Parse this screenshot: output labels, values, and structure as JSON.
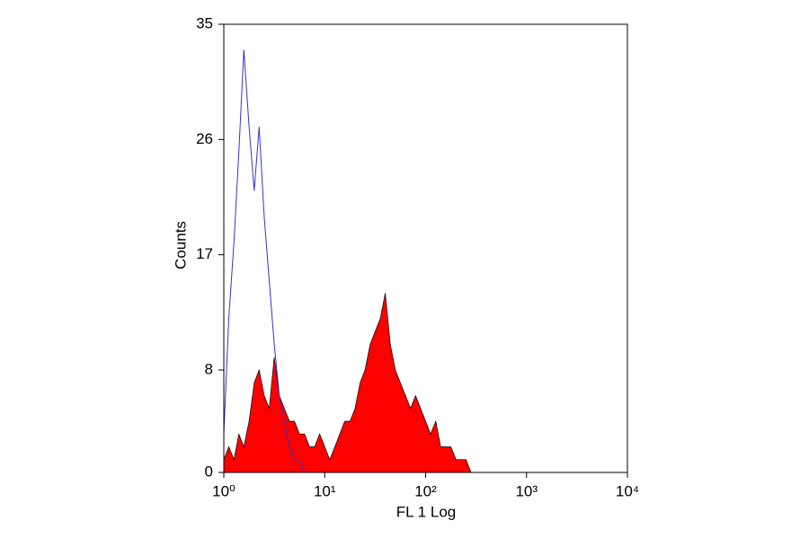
{
  "chart_data": {
    "type": "histogram",
    "xlabel": "FL 1 Log",
    "ylabel": "Counts",
    "log_x": true,
    "xlim": [
      1,
      10000
    ],
    "xticks": [
      {
        "value": 1,
        "label": "10⁰"
      },
      {
        "value": 10,
        "label": "10¹"
      },
      {
        "value": 100,
        "label": "10²"
      },
      {
        "value": 1000,
        "label": "10³"
      },
      {
        "value": 10000,
        "label": "10⁴"
      }
    ],
    "ylim": [
      0,
      35
    ],
    "yticks": [
      0,
      8,
      17,
      26,
      35
    ],
    "x": [
      1,
      1.12,
      1.26,
      1.41,
      1.58,
      1.78,
      2,
      2.24,
      2.51,
      2.82,
      3.16,
      3.55,
      3.98,
      4.47,
      5.01,
      5.62,
      6.31,
      7.08,
      7.94,
      8.91,
      10,
      11.2,
      12.6,
      14.1,
      15.8,
      17.8,
      20,
      22.4,
      25.1,
      28.2,
      31.6,
      35.5,
      39.8,
      44.7,
      50.1,
      56.2,
      63.1,
      70.8,
      79.4,
      89.1,
      100,
      112,
      126,
      141,
      158,
      178,
      200,
      224,
      251,
      282
    ],
    "series": [
      {
        "color": "#ff0000",
        "style": "filled",
        "values": [
          1,
          2,
          1,
          3,
          2,
          4,
          7,
          8,
          6,
          5,
          9,
          6,
          5,
          4,
          4,
          3,
          3,
          2,
          2,
          3,
          2,
          1,
          2,
          3,
          4,
          4,
          5,
          7,
          8,
          10,
          11,
          12,
          14,
          10,
          8,
          7,
          6,
          5,
          6,
          5,
          4,
          3,
          4,
          2,
          2,
          2,
          1,
          1,
          1,
          0
        ]
      },
      {
        "color": "#3333cc",
        "style": "line",
        "values": [
          3,
          12,
          18,
          25,
          33,
          27,
          22,
          27,
          20,
          15,
          10,
          6,
          4,
          2,
          1,
          1,
          0,
          0,
          0,
          0,
          0,
          0,
          0,
          0,
          0,
          0,
          0,
          0,
          0,
          0,
          0,
          0,
          0,
          0,
          0,
          0,
          0,
          0,
          0,
          0,
          0,
          0,
          0,
          0,
          0,
          0,
          0,
          0,
          0,
          0
        ]
      }
    ]
  }
}
